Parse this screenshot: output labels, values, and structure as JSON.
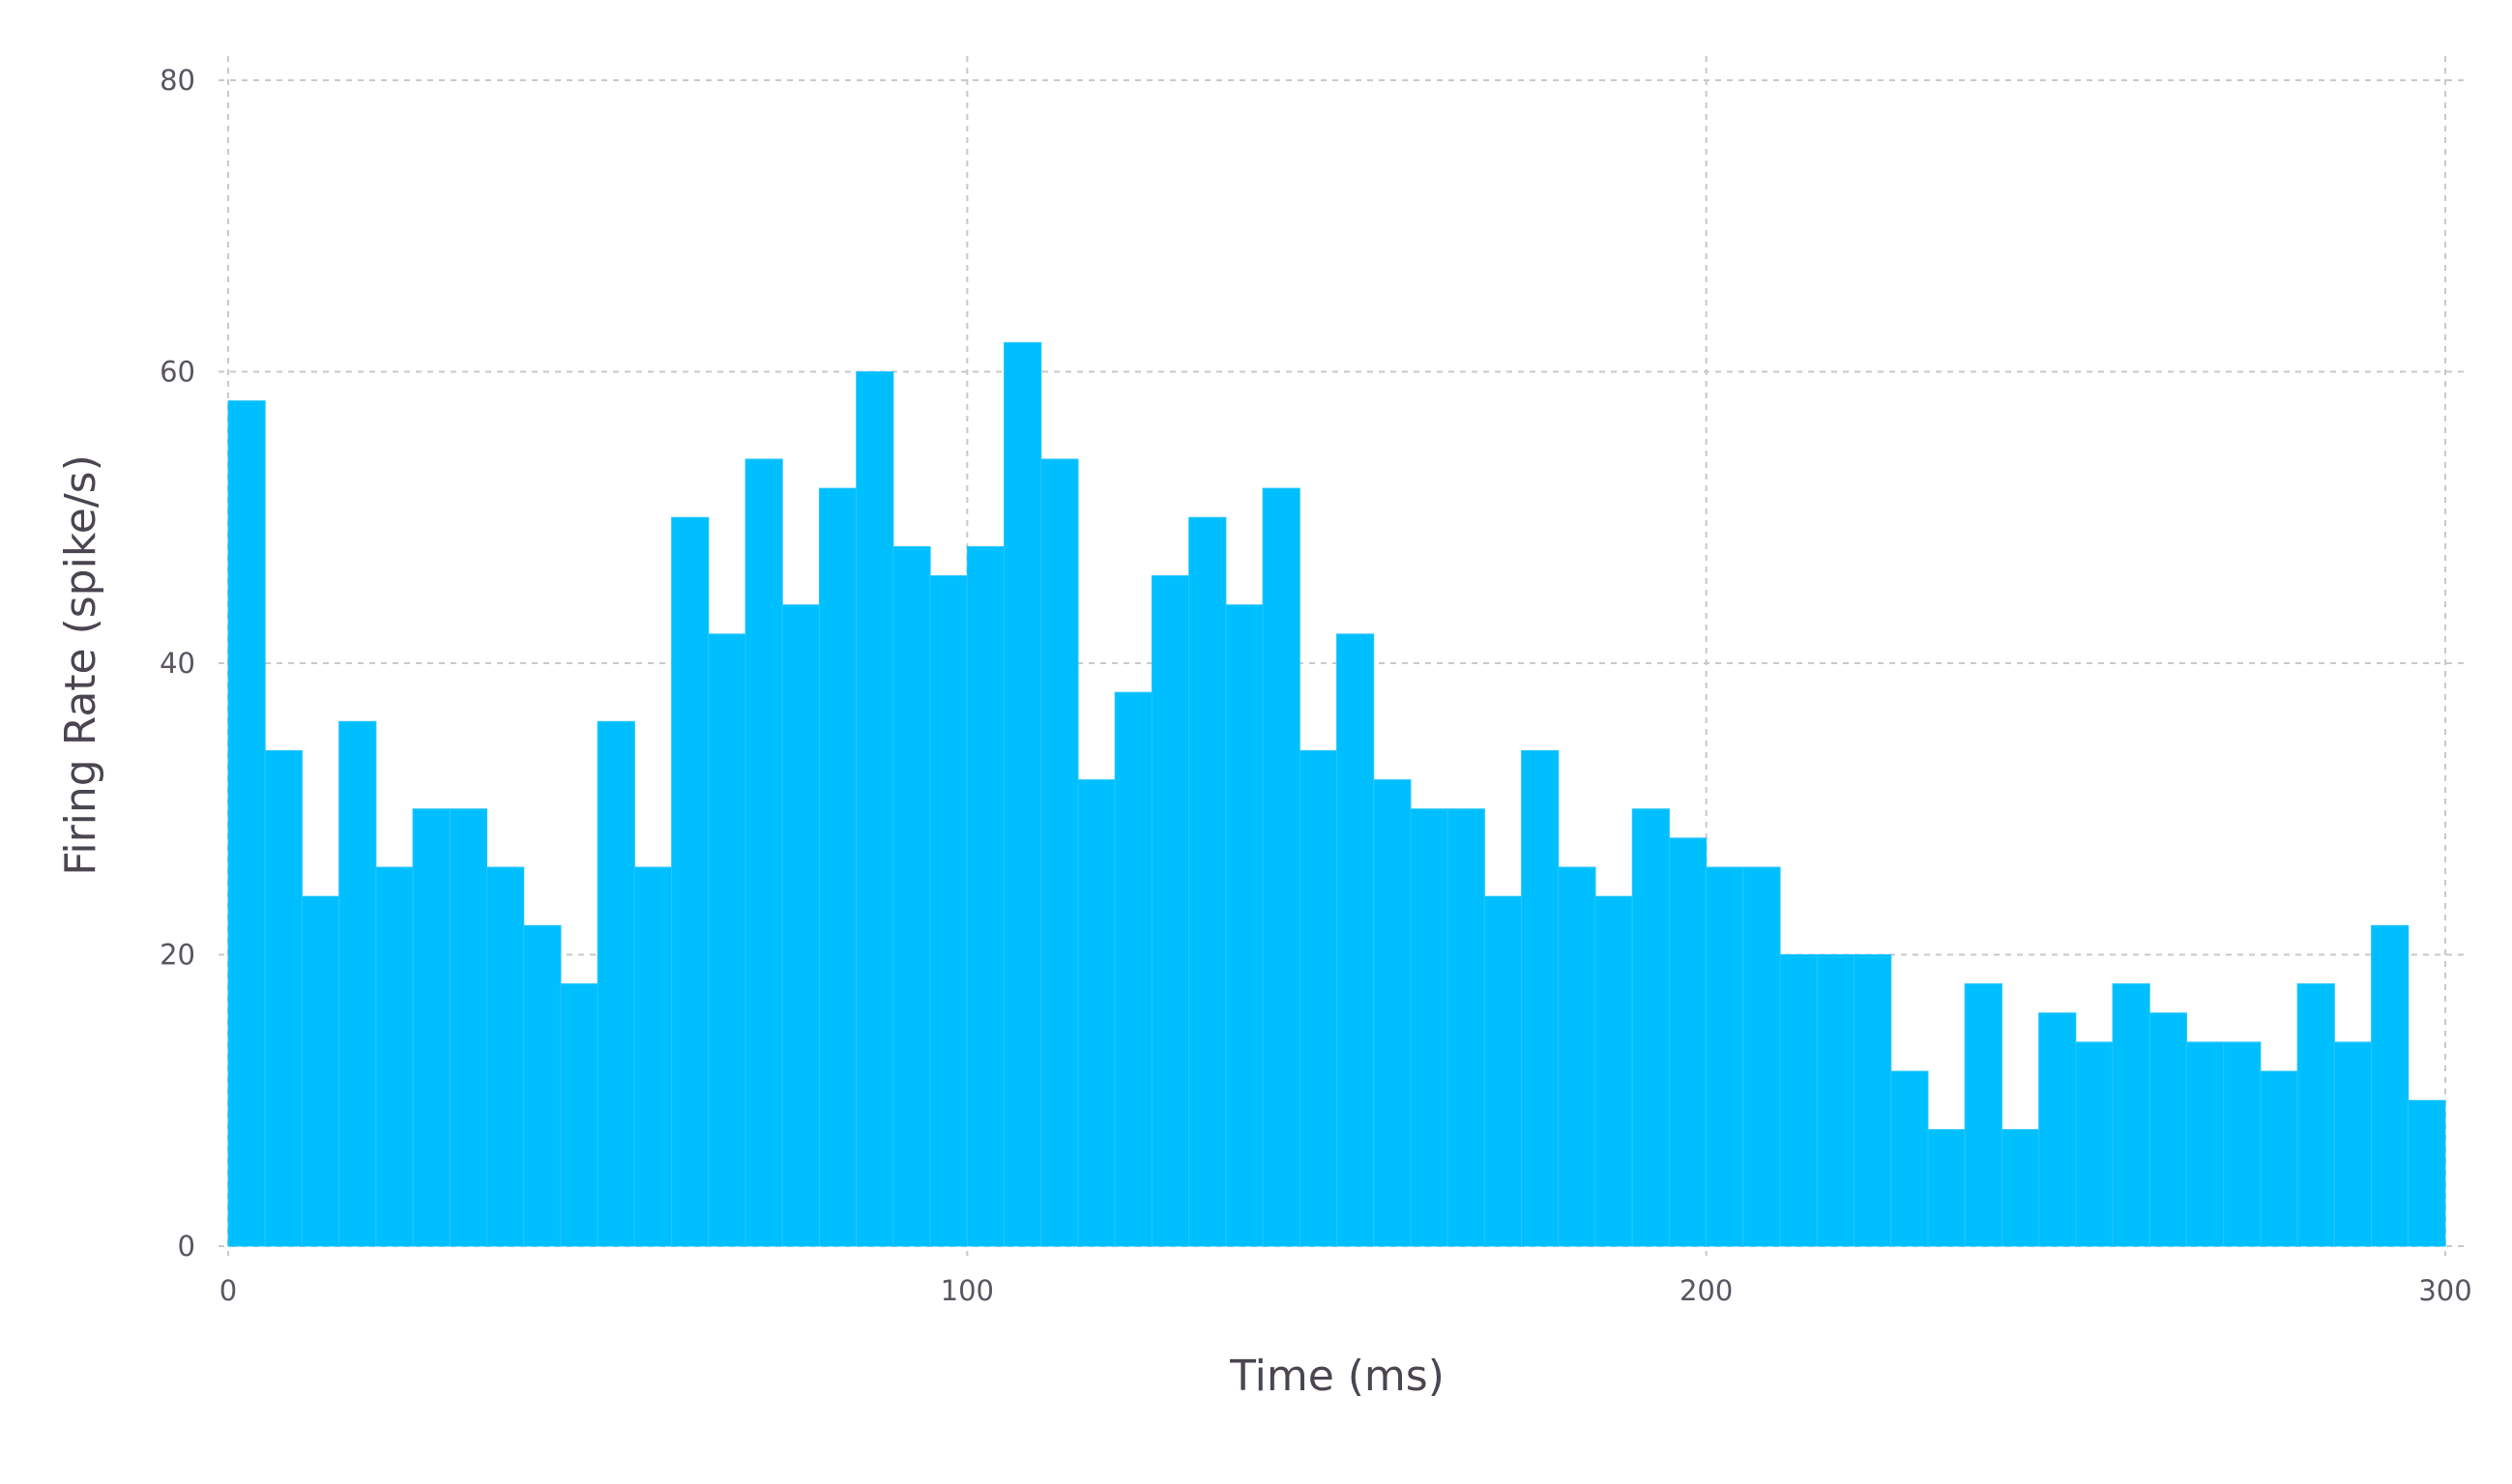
{
  "chart_data": {
    "type": "bar",
    "title": "",
    "xlabel": "Time (ms)",
    "ylabel": "Firing Rate (spike/s)",
    "xlim": [
      0,
      300
    ],
    "ylim": [
      0,
      80
    ],
    "bin_width": 5,
    "x_ticks": [
      0,
      100,
      200,
      300
    ],
    "y_ticks": [
      0,
      20,
      40,
      60,
      80
    ],
    "x_tick_labels": [
      "0",
      "100",
      "200",
      "300"
    ],
    "y_tick_labels": [
      "0",
      "20",
      "40",
      "60",
      "80"
    ],
    "grid": true,
    "legend": "none",
    "bar_color": "#00bfff",
    "grid_color": "#c8c8ce",
    "bins_start": [
      0,
      5,
      10,
      15,
      20,
      25,
      30,
      35,
      40,
      45,
      50,
      55,
      60,
      65,
      70,
      75,
      80,
      85,
      90,
      95,
      100,
      105,
      110,
      115,
      120,
      125,
      130,
      135,
      140,
      145,
      150,
      155,
      160,
      165,
      170,
      175,
      180,
      185,
      190,
      195,
      200,
      205,
      210,
      215,
      220,
      225,
      230,
      235,
      240,
      245,
      250,
      255,
      260,
      265,
      270,
      275,
      280,
      285,
      290,
      295
    ],
    "values": [
      58,
      34,
      24,
      36,
      26,
      30,
      30,
      26,
      22,
      18,
      36,
      26,
      50,
      42,
      54,
      44,
      52,
      60,
      48,
      46,
      48,
      62,
      54,
      32,
      38,
      46,
      50,
      44,
      52,
      34,
      42,
      32,
      30,
      30,
      24,
      34,
      26,
      24,
      30,
      28,
      26,
      26,
      20,
      20,
      20,
      12,
      8,
      18,
      8,
      16,
      14,
      18,
      16,
      14,
      14,
      12,
      18,
      14,
      22,
      10
    ]
  }
}
